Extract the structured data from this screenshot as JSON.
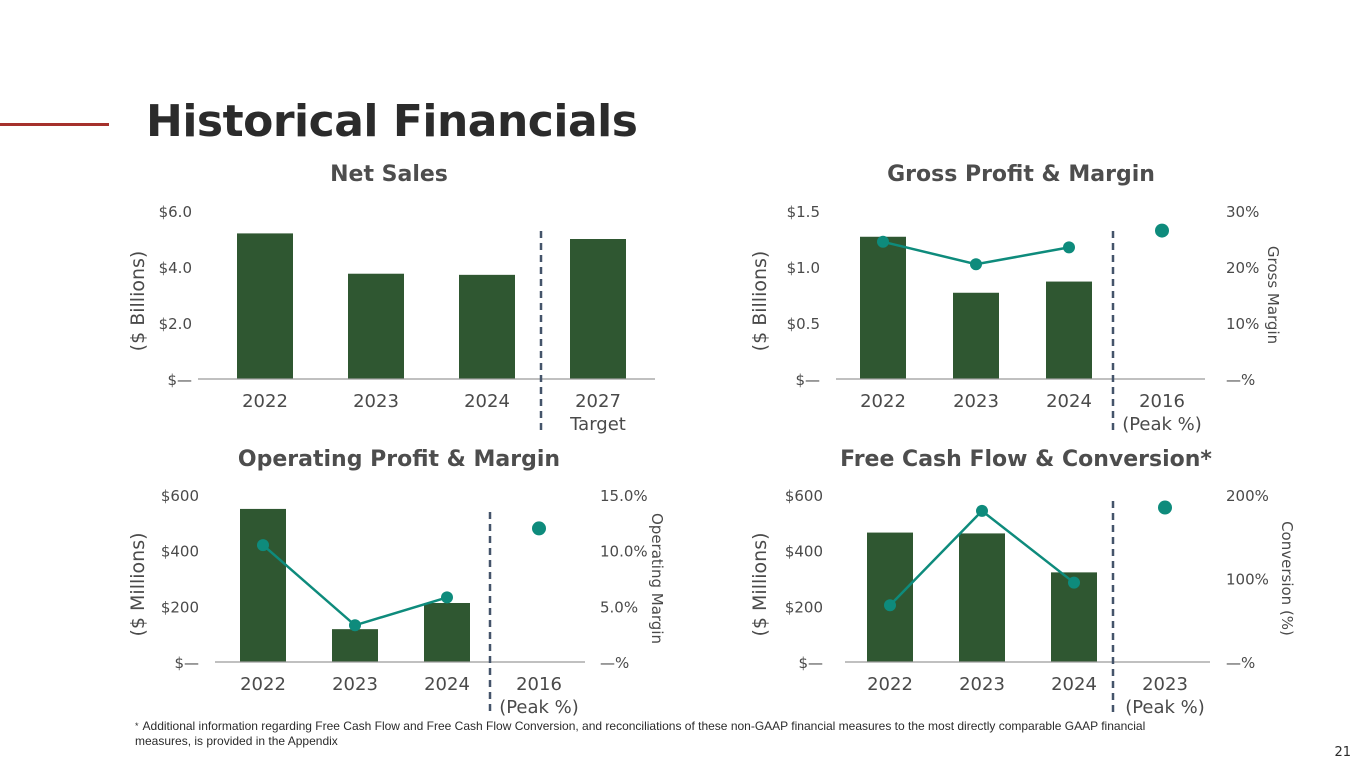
{
  "page": {
    "title": "Historical Financials",
    "footnote_marker": "*",
    "footnote": "Additional information regarding Free Cash Flow and Free Cash Flow Conversion, and reconciliations of these non-GAAP financial measures to the most directly comparable GAAP financial measures, is  provided in the Appendix",
    "page_number": "21"
  },
  "colors": {
    "bar": "#2f5731",
    "line": "#0e8b7c",
    "divider": "#44546a",
    "axis": "#9a9a9a",
    "accent": "#a5312c"
  },
  "chart_data": [
    {
      "type": "bar",
      "title": "Net Sales",
      "ylabel": "($ Billions)",
      "categories": [
        "2022",
        "2023",
        "2024",
        "2027\nTarget"
      ],
      "ylim": [
        0,
        6
      ],
      "yticks": [
        0,
        2,
        4,
        6
      ],
      "ytick_labels": [
        "$—",
        "$2.0",
        "$4.0",
        "$6.0"
      ],
      "values": [
        5.2,
        3.76,
        3.72,
        5.0
      ],
      "divider_after": 3
    },
    {
      "type": "bar+line",
      "title": "Gross Profit & Margin",
      "ylabel": "($ Billions)",
      "y2label": "Gross Margin",
      "categories": [
        "2022",
        "2023",
        "2024",
        "2016\n(Peak %)"
      ],
      "ylim": [
        0,
        1.5
      ],
      "yticks": [
        0,
        0.5,
        1.0,
        1.5
      ],
      "ytick_labels": [
        "$—",
        "$0.5",
        "$1.0",
        "$1.5"
      ],
      "y2lim": [
        0,
        30
      ],
      "y2ticks": [
        0,
        10,
        20,
        30
      ],
      "y2tick_labels": [
        "—%",
        "10%",
        "20%",
        "30%"
      ],
      "values": [
        1.27,
        0.77,
        0.87,
        null
      ],
      "line_values": [
        24.5,
        20.5,
        23.5
      ],
      "peak_value": 26.5,
      "divider_after": 3
    },
    {
      "type": "bar+line",
      "title": "Operating Profit & Margin",
      "ylabel": "($ Millions)",
      "y2label": "Operating Margin",
      "categories": [
        "2022",
        "2023",
        "2024",
        "2016\n(Peak %)"
      ],
      "ylim": [
        0,
        600
      ],
      "yticks": [
        0,
        200,
        400,
        600
      ],
      "ytick_labels": [
        "$—",
        "$200",
        "$400",
        "$600"
      ],
      "y2lim": [
        0,
        15
      ],
      "y2ticks": [
        0,
        5,
        10,
        15
      ],
      "y2tick_labels": [
        "—%",
        "5.0%",
        "10.0%",
        "15.0%"
      ],
      "values": [
        550,
        118,
        212,
        null
      ],
      "line_values": [
        10.5,
        3.3,
        5.8
      ],
      "peak_value": 12.0,
      "divider_after": 3
    },
    {
      "type": "bar+line",
      "title": "Free Cash Flow & Conversion*",
      "ylabel": "($ Millions)",
      "y2label": "Conversion (%)",
      "categories": [
        "2022",
        "2023",
        "2024",
        "2023\n(Peak %)"
      ],
      "ylim": [
        0,
        600
      ],
      "yticks": [
        0,
        200,
        400,
        600
      ],
      "ytick_labels": [
        "$—",
        "$200",
        "$400",
        "$600"
      ],
      "y2lim": [
        0,
        200
      ],
      "y2ticks": [
        0,
        100,
        200
      ],
      "y2tick_labels": [
        "—%",
        "100%",
        "200%"
      ],
      "values": [
        465,
        462,
        322,
        null
      ],
      "line_values": [
        68,
        181,
        95
      ],
      "peak_value": 185,
      "divider_after": 3
    }
  ]
}
